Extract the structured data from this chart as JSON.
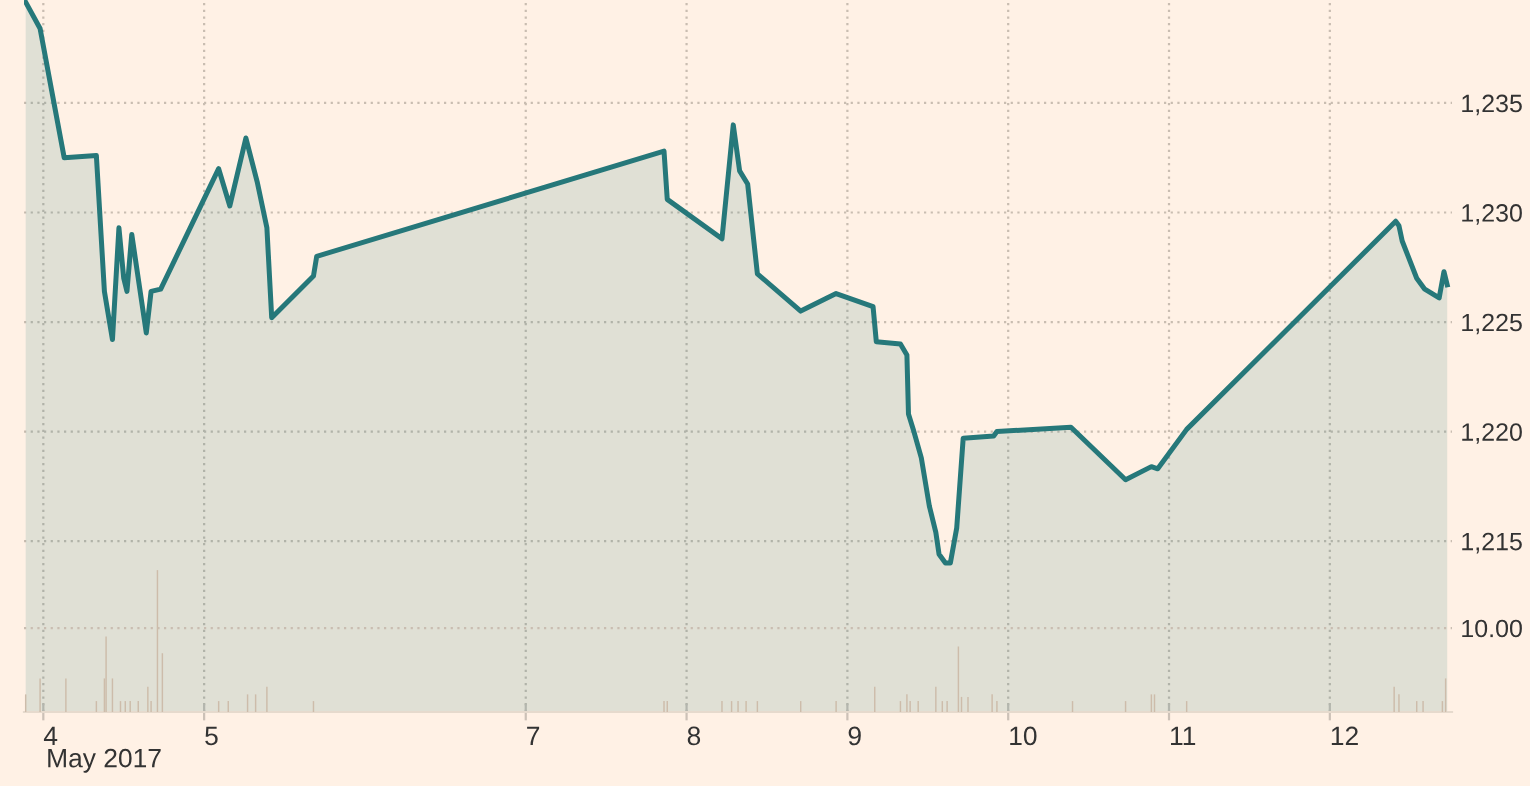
{
  "chart_data": {
    "type": "area",
    "grid": true,
    "xlim": [
      "2017-05-03T21:07",
      "2017-05-12T18:14"
    ],
    "ylim": [
      1207.2,
      1239.7
    ],
    "y2lim": [
      0,
      84.8
    ],
    "xticks": [
      {
        "value": "2017-05-04",
        "label": "4"
      },
      {
        "value": "2017-05-05",
        "label": "5"
      },
      {
        "value": "2017-05-07",
        "label": "7"
      },
      {
        "value": "2017-05-08",
        "label": "8"
      },
      {
        "value": "2017-05-09",
        "label": "9"
      },
      {
        "value": "2017-05-10",
        "label": "10"
      },
      {
        "value": "2017-05-11",
        "label": "11"
      },
      {
        "value": "2017-05-12",
        "label": "12"
      }
    ],
    "yticks": [
      {
        "value": 1215,
        "label": "1,215"
      },
      {
        "value": 1220,
        "label": "1,220"
      },
      {
        "value": 1225,
        "label": "1,225"
      },
      {
        "value": 1230,
        "label": "1,230"
      },
      {
        "value": 1235,
        "label": "1,235"
      }
    ],
    "y2ticks": [
      {
        "value": 10,
        "label": "10.00"
      }
    ],
    "annotations": [
      "May 2017"
    ],
    "series": [
      {
        "color": "#26787a",
        "x": [
          "2017-05-03T21:22",
          "2017-05-03T23:31",
          "2017-05-04T03:07",
          "2017-05-04T07:55",
          "2017-05-04T09:07",
          "2017-05-04T10:19",
          "2017-05-04T11:17",
          "2017-05-04T12:00",
          "2017-05-04T12:29",
          "2017-05-04T13:12",
          "2017-05-04T15:22",
          "2017-05-04T16:05",
          "2017-05-04T17:31",
          "2017-05-05T02:10",
          "2017-05-05T03:50",
          "2017-05-05T06:14",
          "2017-05-05T07:55",
          "2017-05-05T09:22",
          "2017-05-05T10:05",
          "2017-05-05T16:19",
          "2017-05-05T16:48",
          "2017-05-07T20:38",
          "2017-05-07T21:07",
          "2017-05-08T05:17",
          "2017-05-08T06:58",
          "2017-05-08T07:55",
          "2017-05-08T09:07",
          "2017-05-08T10:34",
          "2017-05-08T17:02",
          "2017-05-08T22:19",
          "2017-05-09T03:50",
          "2017-05-09T04:19",
          "2017-05-09T07:55",
          "2017-05-09T08:53",
          "2017-05-09T09:07",
          "2017-05-09T09:50",
          "2017-05-09T11:02",
          "2017-05-09T12:14",
          "2017-05-09T13:12",
          "2017-05-09T13:41",
          "2017-05-09T14:38",
          "2017-05-09T15:22",
          "2017-05-09T16:19",
          "2017-05-09T17:17",
          "2017-05-09T21:50",
          "2017-05-09T22:19",
          "2017-05-10T09:22",
          "2017-05-10T17:31",
          "2017-05-10T21:22",
          "2017-05-10T22:19",
          "2017-05-11T02:38",
          "2017-05-12T09:50",
          "2017-05-12T10:19",
          "2017-05-12T10:48",
          "2017-05-12T12:58",
          "2017-05-12T14:10",
          "2017-05-12T16:19",
          "2017-05-12T17:02",
          "2017-05-12T17:31"
        ],
        "values": [
          1239.6,
          1238.4,
          1232.5,
          1232.6,
          1226.4,
          1224.2,
          1229.3,
          1227.0,
          1226.4,
          1229.0,
          1224.5,
          1226.4,
          1226.5,
          1232.0,
          1230.3,
          1233.4,
          1231.4,
          1229.3,
          1225.2,
          1227.1,
          1228.0,
          1232.8,
          1230.6,
          1228.8,
          1234.0,
          1231.9,
          1231.3,
          1227.2,
          1225.5,
          1226.3,
          1225.7,
          1224.1,
          1224.0,
          1223.5,
          1220.8,
          1220.1,
          1218.8,
          1216.6,
          1215.4,
          1214.4,
          1214.0,
          1214.0,
          1215.6,
          1219.7,
          1219.8,
          1220.0,
          1220.2,
          1217.8,
          1218.4,
          1218.3,
          1220.1,
          1229.6,
          1229.4,
          1228.7,
          1227.0,
          1226.5,
          1226.1,
          1227.3,
          1226.7
        ]
      },
      {
        "type": "bar",
        "axis": "y2",
        "color": "#cdbcaa",
        "x": [
          "2017-05-03T21:22",
          "2017-05-03T23:31",
          "2017-05-04T03:22",
          "2017-05-04T07:55",
          "2017-05-04T09:07",
          "2017-05-04T09:22",
          "2017-05-04T10:19",
          "2017-05-04T11:31",
          "2017-05-04T12:14",
          "2017-05-04T12:58",
          "2017-05-04T14:10",
          "2017-05-04T15:36",
          "2017-05-04T16:05",
          "2017-05-04T17:02",
          "2017-05-04T17:46",
          "2017-05-05T02:10",
          "2017-05-05T03:36",
          "2017-05-05T06:29",
          "2017-05-05T07:41",
          "2017-05-05T09:22",
          "2017-05-05T16:19",
          "2017-05-07T20:38",
          "2017-05-07T21:07",
          "2017-05-08T05:17",
          "2017-05-08T06:43",
          "2017-05-08T07:41",
          "2017-05-08T08:53",
          "2017-05-08T10:34",
          "2017-05-08T17:02",
          "2017-05-08T22:19",
          "2017-05-09T04:05",
          "2017-05-09T07:55",
          "2017-05-09T08:53",
          "2017-05-09T09:22",
          "2017-05-09T10:34",
          "2017-05-09T13:12",
          "2017-05-09T14:10",
          "2017-05-09T14:53",
          "2017-05-09T16:34",
          "2017-05-09T17:02",
          "2017-05-09T18:00",
          "2017-05-09T21:36",
          "2017-05-09T22:19",
          "2017-05-10T09:36",
          "2017-05-10T17:31",
          "2017-05-10T21:22",
          "2017-05-10T21:50",
          "2017-05-11T02:38",
          "2017-05-12T09:36",
          "2017-05-12T10:19",
          "2017-05-12T12:58",
          "2017-05-12T13:55",
          "2017-05-12T16:48",
          "2017-05-12T17:17"
        ],
        "values": [
          2.1,
          4.0,
          4.0,
          1.3,
          4.0,
          9.0,
          4.0,
          1.3,
          1.3,
          1.3,
          1.3,
          3.0,
          1.3,
          16.9,
          7.0,
          1.3,
          1.3,
          2.1,
          2.1,
          3.0,
          1.3,
          1.3,
          1.3,
          1.3,
          1.3,
          1.3,
          1.3,
          1.3,
          1.3,
          1.3,
          3.0,
          1.3,
          2.1,
          1.3,
          1.3,
          3.0,
          1.3,
          1.3,
          7.8,
          1.8,
          1.8,
          2.1,
          1.3,
          1.3,
          1.3,
          2.1,
          2.1,
          1.3,
          3.0,
          2.1,
          1.3,
          1.3,
          1.3,
          4.0
        ]
      }
    ]
  }
}
